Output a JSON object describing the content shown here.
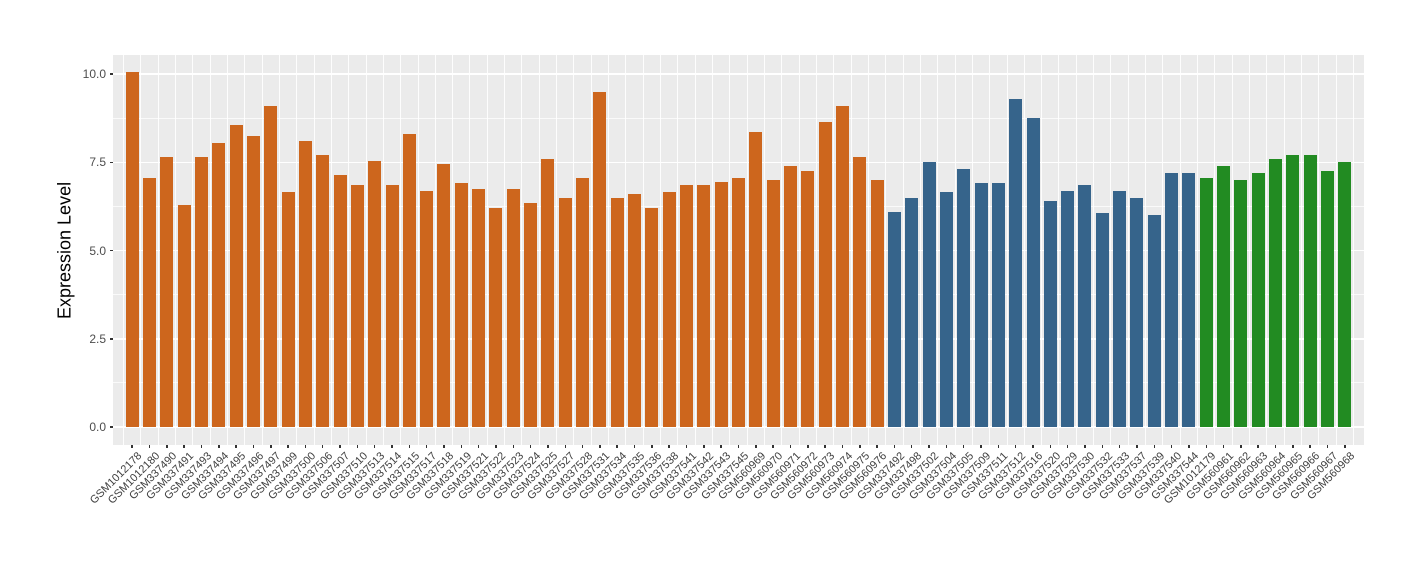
{
  "chart_data": {
    "type": "bar",
    "title": "",
    "xlabel": "",
    "ylabel": "Expression Level",
    "ylim": [
      0,
      10.36
    ],
    "yticks": [
      {
        "value": 0.0,
        "label": "0.0"
      },
      {
        "value": 2.5,
        "label": "2.5"
      },
      {
        "value": 5.0,
        "label": "5.0"
      },
      {
        "value": 7.5,
        "label": "7.5"
      },
      {
        "value": 10.0,
        "label": "10.0"
      }
    ],
    "minor_gridlines": [
      1.25,
      3.75,
      6.25,
      8.75
    ],
    "grid": "white major and minor horizontal lines plus vertical slot lines on gray panel (ggplot theme_gray)",
    "legend_position": "none",
    "panel_background": "#EBEBEB",
    "gridline_color": "#FFFFFF",
    "groups": [
      {
        "name": "group-orange",
        "color": "#CD661D"
      },
      {
        "name": "group-blue",
        "color": "#36648B"
      },
      {
        "name": "group-green",
        "color": "#228B22"
      }
    ],
    "bars": [
      {
        "label": "GSM1012178",
        "value": 10.05,
        "group": 0
      },
      {
        "label": "GSM1012180",
        "value": 7.05,
        "group": 0
      },
      {
        "label": "GSM337490",
        "value": 7.65,
        "group": 0
      },
      {
        "label": "GSM337491",
        "value": 6.3,
        "group": 0
      },
      {
        "label": "GSM337493",
        "value": 7.65,
        "group": 0
      },
      {
        "label": "GSM337494",
        "value": 8.05,
        "group": 0
      },
      {
        "label": "GSM337495",
        "value": 8.55,
        "group": 0
      },
      {
        "label": "GSM337496",
        "value": 8.25,
        "group": 0
      },
      {
        "label": "GSM337497",
        "value": 9.1,
        "group": 0
      },
      {
        "label": "GSM337499",
        "value": 6.65,
        "group": 0
      },
      {
        "label": "GSM337500",
        "value": 8.1,
        "group": 0
      },
      {
        "label": "GSM337506",
        "value": 7.7,
        "group": 0
      },
      {
        "label": "GSM337507",
        "value": 7.15,
        "group": 0
      },
      {
        "label": "GSM337510",
        "value": 6.85,
        "group": 0
      },
      {
        "label": "GSM337513",
        "value": 7.55,
        "group": 0
      },
      {
        "label": "GSM337514",
        "value": 6.85,
        "group": 0
      },
      {
        "label": "GSM337515",
        "value": 8.3,
        "group": 0
      },
      {
        "label": "GSM337517",
        "value": 6.7,
        "group": 0
      },
      {
        "label": "GSM337518",
        "value": 7.45,
        "group": 0
      },
      {
        "label": "GSM337519",
        "value": 6.9,
        "group": 0
      },
      {
        "label": "GSM337521",
        "value": 6.75,
        "group": 0
      },
      {
        "label": "GSM337522",
        "value": 6.2,
        "group": 0
      },
      {
        "label": "GSM337523",
        "value": 6.75,
        "group": 0
      },
      {
        "label": "GSM337524",
        "value": 6.35,
        "group": 0
      },
      {
        "label": "GSM337525",
        "value": 7.6,
        "group": 0
      },
      {
        "label": "GSM337527",
        "value": 6.5,
        "group": 0
      },
      {
        "label": "GSM337528",
        "value": 7.05,
        "group": 0
      },
      {
        "label": "GSM337531",
        "value": 9.5,
        "group": 0
      },
      {
        "label": "GSM337534",
        "value": 6.5,
        "group": 0
      },
      {
        "label": "GSM337535",
        "value": 6.6,
        "group": 0
      },
      {
        "label": "GSM337536",
        "value": 6.2,
        "group": 0
      },
      {
        "label": "GSM337538",
        "value": 6.65,
        "group": 0
      },
      {
        "label": "GSM337541",
        "value": 6.85,
        "group": 0
      },
      {
        "label": "GSM337542",
        "value": 6.85,
        "group": 0
      },
      {
        "label": "GSM337543",
        "value": 6.95,
        "group": 0
      },
      {
        "label": "GSM337545",
        "value": 7.05,
        "group": 0
      },
      {
        "label": "GSM560969",
        "value": 8.35,
        "group": 0
      },
      {
        "label": "GSM560970",
        "value": 7.0,
        "group": 0
      },
      {
        "label": "GSM560971",
        "value": 7.4,
        "group": 0
      },
      {
        "label": "GSM560972",
        "value": 7.25,
        "group": 0
      },
      {
        "label": "GSM560973",
        "value": 8.65,
        "group": 0
      },
      {
        "label": "GSM560974",
        "value": 9.1,
        "group": 0
      },
      {
        "label": "GSM560975",
        "value": 7.65,
        "group": 0
      },
      {
        "label": "GSM560976",
        "value": 7.0,
        "group": 0
      },
      {
        "label": "GSM337492",
        "value": 6.1,
        "group": 1
      },
      {
        "label": "GSM337498",
        "value": 6.5,
        "group": 1
      },
      {
        "label": "GSM337502",
        "value": 7.5,
        "group": 1
      },
      {
        "label": "GSM337504",
        "value": 6.65,
        "group": 1
      },
      {
        "label": "GSM337505",
        "value": 7.3,
        "group": 1
      },
      {
        "label": "GSM337509",
        "value": 6.9,
        "group": 1
      },
      {
        "label": "GSM337511",
        "value": 6.9,
        "group": 1
      },
      {
        "label": "GSM337512",
        "value": 9.3,
        "group": 1
      },
      {
        "label": "GSM337516",
        "value": 8.75,
        "group": 1
      },
      {
        "label": "GSM337520",
        "value": 6.4,
        "group": 1
      },
      {
        "label": "GSM337529",
        "value": 6.7,
        "group": 1
      },
      {
        "label": "GSM337530",
        "value": 6.85,
        "group": 1
      },
      {
        "label": "GSM337532",
        "value": 6.05,
        "group": 1
      },
      {
        "label": "GSM337533",
        "value": 6.7,
        "group": 1
      },
      {
        "label": "GSM337537",
        "value": 6.5,
        "group": 1
      },
      {
        "label": "GSM337539",
        "value": 6.0,
        "group": 1
      },
      {
        "label": "GSM337540",
        "value": 7.2,
        "group": 1
      },
      {
        "label": "GSM337544",
        "value": 7.2,
        "group": 1
      },
      {
        "label": "GSM1012179",
        "value": 7.05,
        "group": 2
      },
      {
        "label": "GSM560961",
        "value": 7.4,
        "group": 2
      },
      {
        "label": "GSM560962",
        "value": 7.0,
        "group": 2
      },
      {
        "label": "GSM560963",
        "value": 7.2,
        "group": 2
      },
      {
        "label": "GSM560964",
        "value": 7.6,
        "group": 2
      },
      {
        "label": "GSM560965",
        "value": 7.7,
        "group": 2
      },
      {
        "label": "GSM560966",
        "value": 7.7,
        "group": 2
      },
      {
        "label": "GSM560967",
        "value": 7.25,
        "group": 2
      },
      {
        "label": "GSM560968",
        "value": 7.5,
        "group": 2
      }
    ]
  }
}
